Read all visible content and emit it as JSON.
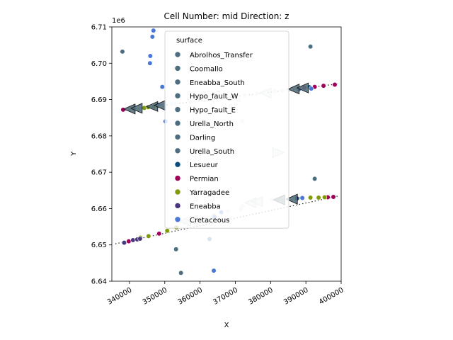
{
  "chart_data": {
    "type": "scatter",
    "title": "Cell Number: mid Direction: z",
    "xlabel": "X",
    "ylabel": "Y",
    "y_offset_label": "1e6",
    "xlim": [
      335000,
      400000
    ],
    "ylim": [
      6640000,
      6710000
    ],
    "x_ticks": [
      340000,
      350000,
      360000,
      370000,
      380000,
      390000,
      400000
    ],
    "x_tick_labels": [
      "340000",
      "350000",
      "360000",
      "370000",
      "380000",
      "390000",
      "400000"
    ],
    "y_ticks": [
      6640000,
      6650000,
      6660000,
      6670000,
      6680000,
      6690000,
      6700000,
      6710000
    ],
    "y_tick_labels": [
      "6.64",
      "6.65",
      "6.66",
      "6.67",
      "6.68",
      "6.69",
      "6.70",
      "6.71"
    ],
    "grid": false,
    "legend": {
      "title": "surface",
      "placement": "upper-center",
      "entries": [
        {
          "label": "Abrolhos_Transfer",
          "color": "#4d6e80"
        },
        {
          "label": "Coomallo",
          "color": "#4d6e80"
        },
        {
          "label": "Eneabba_South",
          "color": "#4d6e80"
        },
        {
          "label": "Hypo_fault_W",
          "color": "#4d6e80"
        },
        {
          "label": "Hypo_fault_E",
          "color": "#4d6e80"
        },
        {
          "label": "Urella_North",
          "color": "#4d6e80"
        },
        {
          "label": "Darling",
          "color": "#4d6e80"
        },
        {
          "label": "Urella_South",
          "color": "#4d6e80"
        },
        {
          "label": "Lesueur",
          "color": "#0b4f7c"
        },
        {
          "label": "Permian",
          "color": "#a0005a"
        },
        {
          "label": "Yarragadee",
          "color": "#7f9a0a"
        },
        {
          "label": "Eneabba",
          "color": "#4a3580"
        },
        {
          "label": "Cretaceous",
          "color": "#4a78d6"
        }
      ]
    },
    "series": [
      {
        "name": "Abrolhos_Transfer",
        "color": "#4d6e80",
        "points": [
          [
            338000,
            6703200
          ],
          [
            391300,
            6704600
          ],
          [
            392500,
            6668200
          ],
          [
            353200,
            6648800
          ],
          [
            354600,
            6642300
          ]
        ]
      },
      {
        "name": "Lesueur",
        "color": "#0b4f7c",
        "points": [
          [
            391000,
            6693400
          ],
          [
            387500,
            6662800
          ]
        ]
      },
      {
        "name": "Permian",
        "color": "#a0005a",
        "points": [
          [
            338200,
            6687200
          ],
          [
            398200,
            6694100
          ],
          [
            395000,
            6693800
          ],
          [
            392500,
            6693500
          ],
          [
            389500,
            6693300
          ],
          [
            397800,
            6663200
          ],
          [
            396200,
            6663100
          ],
          [
            339800,
            6651000
          ],
          [
            348400,
            6653100
          ]
        ]
      },
      {
        "name": "Yarragadee",
        "color": "#7f9a0a",
        "points": [
          [
            344200,
            6687700
          ],
          [
            345300,
            6687900
          ],
          [
            346800,
            6688100
          ],
          [
            347900,
            6688300
          ],
          [
            388800,
            6662900
          ],
          [
            391300,
            6663000
          ],
          [
            393600,
            6663000
          ],
          [
            395300,
            6663100
          ],
          [
            343100,
            6652000
          ],
          [
            345400,
            6652400
          ],
          [
            350700,
            6653900
          ],
          [
            353300,
            6654800
          ],
          [
            364000,
            6658000
          ]
        ]
      },
      {
        "name": "Eneabba",
        "color": "#4a3580",
        "points": [
          [
            341000,
            6651300
          ],
          [
            342200,
            6651500
          ],
          [
            343000,
            6651700
          ],
          [
            338500,
            6650600
          ]
        ]
      },
      {
        "name": "Cretaceous",
        "color": "#4a78d6",
        "points": [
          [
            346800,
            6709000
          ],
          [
            346500,
            6707300
          ],
          [
            345900,
            6702000
          ],
          [
            349300,
            6693500
          ],
          [
            350200,
            6684000
          ],
          [
            363900,
            6642900
          ],
          [
            391500,
            6693000
          ],
          [
            389000,
            6662900
          ],
          [
            388000,
            6692800
          ],
          [
            348100,
            6688600
          ],
          [
            364100,
            6657700
          ],
          [
            345800,
            6700000
          ],
          [
            366000,
            6659000
          ]
        ]
      },
      {
        "name": "",
        "color": "#dbe4ec",
        "points": [
          [
            349800,
            6688500
          ],
          [
            352000,
            6688900
          ],
          [
            353000,
            6688800
          ],
          [
            357400,
            6689500
          ],
          [
            358500,
            6689600
          ],
          [
            368600,
            6688300
          ],
          [
            370000,
            6688700
          ],
          [
            372000,
            6684000
          ],
          [
            376000,
            6691600
          ],
          [
            378000,
            6691900
          ],
          [
            381000,
            6692200
          ],
          [
            383400,
            6692400
          ],
          [
            385000,
            6692600
          ],
          [
            353300,
            6672500
          ],
          [
            358700,
            6662300
          ],
          [
            377400,
            6662300
          ],
          [
            380300,
            6662500
          ],
          [
            382000,
            6662600
          ],
          [
            362700,
            6651600
          ],
          [
            355600,
            6656000
          ],
          [
            360000,
            6657000
          ],
          [
            367800,
            6659300
          ],
          [
            372000,
            6660700
          ],
          [
            352500,
            6698700
          ],
          [
            385000,
            6662700
          ]
        ]
      },
      {
        "name": "",
        "color": "#e8e2e2",
        "points": [
          [
            352600,
            6698600
          ],
          [
            366700,
            6690800
          ],
          [
            371000,
            6689800
          ],
          [
            361500,
            6690700
          ],
          [
            372600,
            6691200
          ],
          [
            385200,
            6662600
          ],
          [
            371500,
            6659800
          ]
        ]
      }
    ],
    "arrows": [
      {
        "x": 340200,
        "y": 6687400,
        "shade": "dark"
      },
      {
        "x": 342200,
        "y": 6687600,
        "shade": "dark"
      },
      {
        "x": 346600,
        "y": 6688100,
        "shade": "dark"
      },
      {
        "x": 348800,
        "y": 6688400,
        "shade": "dark"
      },
      {
        "x": 360000,
        "y": 6690800,
        "shade": "light"
      },
      {
        "x": 378700,
        "y": 6691800,
        "shade": "light"
      },
      {
        "x": 386700,
        "y": 6692900,
        "shade": "dark"
      },
      {
        "x": 389300,
        "y": 6693200,
        "shade": "dark"
      },
      {
        "x": 382000,
        "y": 6675400,
        "shade": "light",
        "dir": "right"
      },
      {
        "x": 356000,
        "y": 6656500,
        "shade": "light"
      },
      {
        "x": 358000,
        "y": 6656800,
        "shade": "light"
      },
      {
        "x": 374500,
        "y": 6661600,
        "shade": "light"
      },
      {
        "x": 376300,
        "y": 6661900,
        "shade": "light"
      },
      {
        "x": 382600,
        "y": 6662400,
        "shade": "dark"
      },
      {
        "x": 386200,
        "y": 6662600,
        "shade": "dark"
      }
    ],
    "lines": [
      {
        "from": [
          338000,
          6687000
        ],
        "to": [
          399000,
          6694300
        ]
      },
      {
        "from": [
          336000,
          6650300
        ],
        "to": [
          399000,
          6663400
        ]
      }
    ]
  }
}
